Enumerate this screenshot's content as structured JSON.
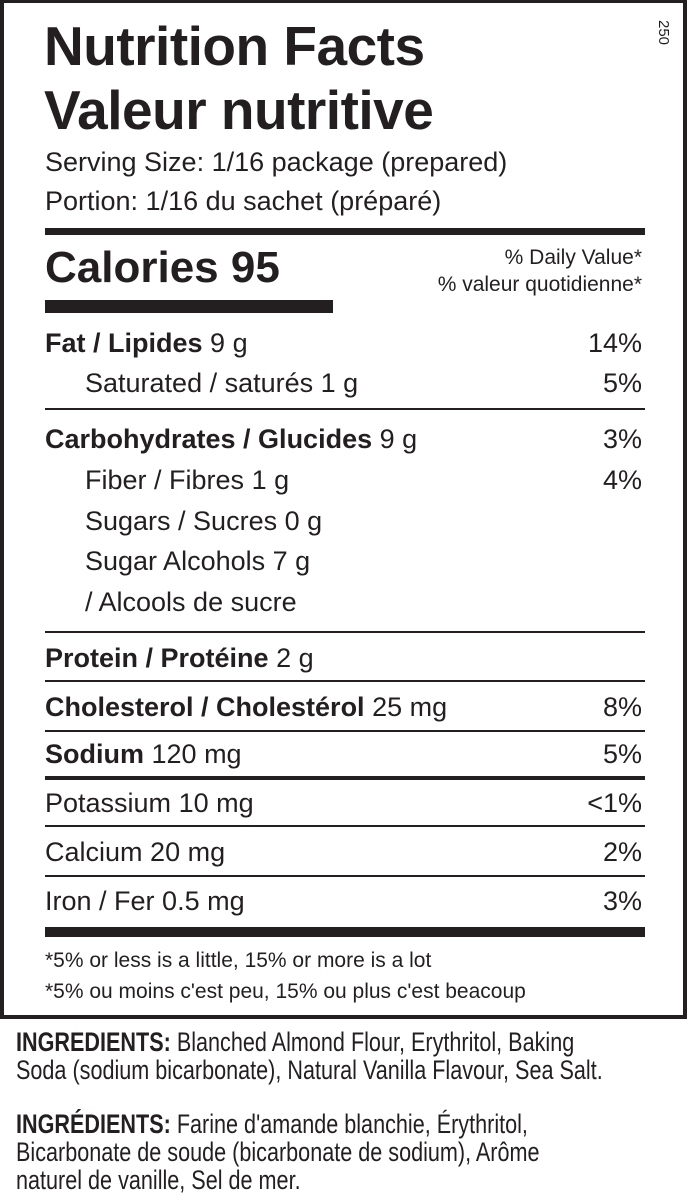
{
  "code": "250",
  "title_en": "Nutrition Facts",
  "title_fr": "Valeur nutritive",
  "serving_en": "Serving Size: 1/16 package (prepared)",
  "serving_fr": "Portion: 1/16 du sachet (préparé)",
  "calories_label": "Calories 95",
  "dv_en": "% Daily Value*",
  "dv_fr": "% valeur quotidienne*",
  "rows": [
    {
      "label": "Fat / Lipides",
      "amount": "9 g",
      "dv": "14%"
    },
    {
      "label": "Saturated / saturés",
      "amount": "1 g",
      "dv": "5%"
    },
    {
      "label": "Carbohydrates / Glucides",
      "amount": "9 g",
      "dv": "3%"
    },
    {
      "label": "Fiber / Fibres",
      "amount": "1 g",
      "dv": "4%"
    },
    {
      "label": "Sugars / Sucres",
      "amount": "0 g",
      "dv": ""
    },
    {
      "label": "Sugar Alcohols",
      "amount": "7 g",
      "dv": ""
    },
    {
      "label": "/ Alcools de sucre",
      "amount": "",
      "dv": ""
    },
    {
      "label": "Protein / Protéine",
      "amount": "2 g",
      "dv": ""
    },
    {
      "label": "Cholesterol / Cholestérol",
      "amount": "25 mg",
      "dv": "8%"
    },
    {
      "label": "Sodium",
      "amount": "120 mg",
      "dv": "5%"
    },
    {
      "label": "Potassium",
      "amount": "10 mg",
      "dv": "<1%"
    },
    {
      "label": "Calcium",
      "amount": "20 mg",
      "dv": "2%"
    },
    {
      "label": "Iron / Fer",
      "amount": "0.5 mg",
      "dv": "3%"
    }
  ],
  "footnote_en": "*5% or less is a little, 15% or more is a lot",
  "footnote_fr": "*5% ou moins c'est peu, 15% ou plus c'est beacoup",
  "ingredients_en": {
    "label": "INGREDIENTS:",
    "line1": "Blanched Almond Flour, Erythritol, Baking",
    "line2": "Soda (sodium bicarbonate), Natural Vanilla Flavour, Sea Salt."
  },
  "ingredients_fr": {
    "label": "INGRÉDIENTS:",
    "line1": "Farine d'amande blanchie, Érythritol,",
    "line2": "Bicarbonate de soude (bicarbonate de sodium), Arôme",
    "line3": "naturel de vanille, Sel de mer."
  }
}
